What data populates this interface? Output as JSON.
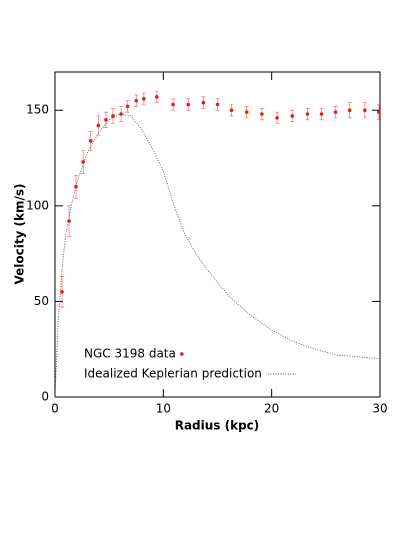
{
  "chart_data": {
    "type": "scatter",
    "xlabel": "Radius (kpc)",
    "ylabel": "Velocity (km/s)",
    "xlim": [
      0,
      30
    ],
    "ylim": [
      0,
      170
    ],
    "xticks": [
      0,
      10,
      20,
      30
    ],
    "yticks": [
      0,
      50,
      100,
      150
    ],
    "legend": "lower left",
    "series": [
      {
        "name": "NGC 3198 data",
        "color": "#e41a1c",
        "mode": "markers",
        "x": [
          0.65,
          1.3,
          1.94,
          2.6,
          3.3,
          4.0,
          4.7,
          5.35,
          6.1,
          6.7,
          7.5,
          8.2,
          9.4,
          10.9,
          12.3,
          13.7,
          15.0,
          16.3,
          17.7,
          19.1,
          20.5,
          21.9,
          23.3,
          24.6,
          25.9,
          27.2,
          28.6,
          29.9
        ],
        "values": [
          55,
          92,
          110,
          123,
          134,
          142,
          145,
          147,
          148,
          152,
          155,
          156,
          157,
          153,
          153,
          154,
          153,
          150,
          149,
          148,
          146,
          147,
          148,
          148,
          149,
          150,
          150,
          149
        ],
        "errors": [
          8,
          8,
          6,
          6,
          5,
          5,
          4,
          4,
          4,
          3,
          3,
          3,
          3,
          3,
          3,
          3,
          3,
          3,
          3,
          3,
          3,
          3,
          3,
          3,
          3,
          4,
          4,
          4
        ]
      },
      {
        "name": "Idealized Keplerian prediction",
        "color": "#555555",
        "mode": "dotted-line",
        "x": [
          0,
          0.3,
          0.7,
          1,
          1.5,
          2,
          3,
          4,
          5,
          6,
          7,
          8,
          9,
          10,
          11,
          12,
          13,
          14,
          15,
          16,
          18,
          20,
          22,
          24,
          26,
          28,
          30
        ],
        "values": [
          0,
          40,
          70,
          85,
          100,
          112,
          128,
          138,
          145,
          148,
          147,
          140,
          130,
          118,
          100,
          85,
          75,
          67,
          60,
          53,
          43,
          35,
          29,
          25,
          22,
          21,
          20
        ]
      }
    ]
  }
}
